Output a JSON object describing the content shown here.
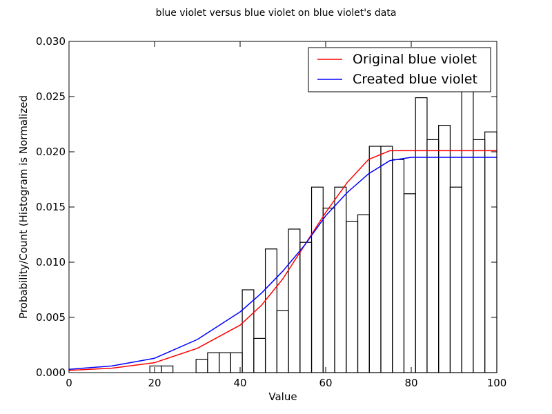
{
  "chart_data": {
    "type": "bar",
    "title": "blue violet versus blue violet on blue violet's data",
    "xlabel": "Value",
    "ylabel": "Probability/Count (Histogram is Normalized",
    "xlim": [
      0,
      100
    ],
    "ylim": [
      0,
      0.03
    ],
    "x_ticks": [
      0,
      20,
      40,
      60,
      80,
      100
    ],
    "x_tick_labels": [
      "0",
      "20",
      "40",
      "60",
      "80",
      "100"
    ],
    "y_ticks": [
      0,
      0.005,
      0.01,
      0.015,
      0.02,
      0.025,
      0.03
    ],
    "y_tick_labels": [
      "0.000",
      "0.005",
      "0.010",
      "0.015",
      "0.020",
      "0.025",
      "0.030"
    ],
    "grid": false,
    "legend_position": "top-right",
    "histogram": {
      "bins": [
        {
          "x0": 18.9,
          "x1": 21.6,
          "value": 0.0006
        },
        {
          "x0": 21.6,
          "x1": 24.3,
          "value": 0.0006
        },
        {
          "x0": 24.3,
          "x1": 27.0,
          "value": 0.0
        },
        {
          "x0": 27.0,
          "x1": 29.7,
          "value": 0.0
        },
        {
          "x0": 29.7,
          "x1": 32.4,
          "value": 0.0012
        },
        {
          "x0": 32.4,
          "x1": 35.1,
          "value": 0.0018
        },
        {
          "x0": 35.1,
          "x1": 37.8,
          "value": 0.0018
        },
        {
          "x0": 37.8,
          "x1": 40.5,
          "value": 0.0018
        },
        {
          "x0": 40.5,
          "x1": 43.2,
          "value": 0.0075
        },
        {
          "x0": 43.2,
          "x1": 45.9,
          "value": 0.0031
        },
        {
          "x0": 45.9,
          "x1": 48.6,
          "value": 0.0112
        },
        {
          "x0": 48.6,
          "x1": 51.3,
          "value": 0.0056
        },
        {
          "x0": 51.3,
          "x1": 54.0,
          "value": 0.013
        },
        {
          "x0": 54.0,
          "x1": 56.7,
          "value": 0.0118
        },
        {
          "x0": 56.7,
          "x1": 59.4,
          "value": 0.0168
        },
        {
          "x0": 59.4,
          "x1": 62.1,
          "value": 0.0149
        },
        {
          "x0": 62.1,
          "x1": 64.8,
          "value": 0.0168
        },
        {
          "x0": 64.8,
          "x1": 67.5,
          "value": 0.0137
        },
        {
          "x0": 67.5,
          "x1": 70.2,
          "value": 0.0143
        },
        {
          "x0": 70.2,
          "x1": 72.9,
          "value": 0.0205
        },
        {
          "x0": 72.9,
          "x1": 75.6,
          "value": 0.0205
        },
        {
          "x0": 75.6,
          "x1": 78.3,
          "value": 0.0193
        },
        {
          "x0": 78.3,
          "x1": 81.0,
          "value": 0.0162
        },
        {
          "x0": 81.0,
          "x1": 83.7,
          "value": 0.0249
        },
        {
          "x0": 83.7,
          "x1": 86.4,
          "value": 0.0211
        },
        {
          "x0": 86.4,
          "x1": 89.1,
          "value": 0.0224
        },
        {
          "x0": 89.1,
          "x1": 91.8,
          "value": 0.0168
        },
        {
          "x0": 91.8,
          "x1": 94.5,
          "value": 0.0255
        },
        {
          "x0": 94.5,
          "x1": 97.2,
          "value": 0.0211
        },
        {
          "x0": 97.2,
          "x1": 100.0,
          "value": 0.0218
        }
      ]
    },
    "series": [
      {
        "name": "Original blue violet",
        "color": "#ff0000",
        "x": [
          0,
          10,
          20,
          30,
          40,
          45,
          50,
          55,
          60,
          65,
          70,
          75,
          80,
          85,
          90,
          95,
          100
        ],
        "y": [
          0.0002,
          0.0004,
          0.0009,
          0.0022,
          0.0043,
          0.0061,
          0.0085,
          0.0115,
          0.0145,
          0.0172,
          0.0193,
          0.0201,
          0.0201,
          0.0201,
          0.0201,
          0.0201,
          0.0201
        ]
      },
      {
        "name": "Created blue violet",
        "color": "#0000ff",
        "x": [
          0,
          10,
          20,
          30,
          40,
          45,
          50,
          55,
          60,
          65,
          70,
          75,
          80,
          85,
          90,
          95,
          100
        ],
        "y": [
          0.0003,
          0.0006,
          0.0013,
          0.003,
          0.0055,
          0.0072,
          0.0092,
          0.0115,
          0.0142,
          0.0163,
          0.018,
          0.0192,
          0.0195,
          0.0195,
          0.0195,
          0.0195,
          0.0195
        ]
      }
    ]
  }
}
